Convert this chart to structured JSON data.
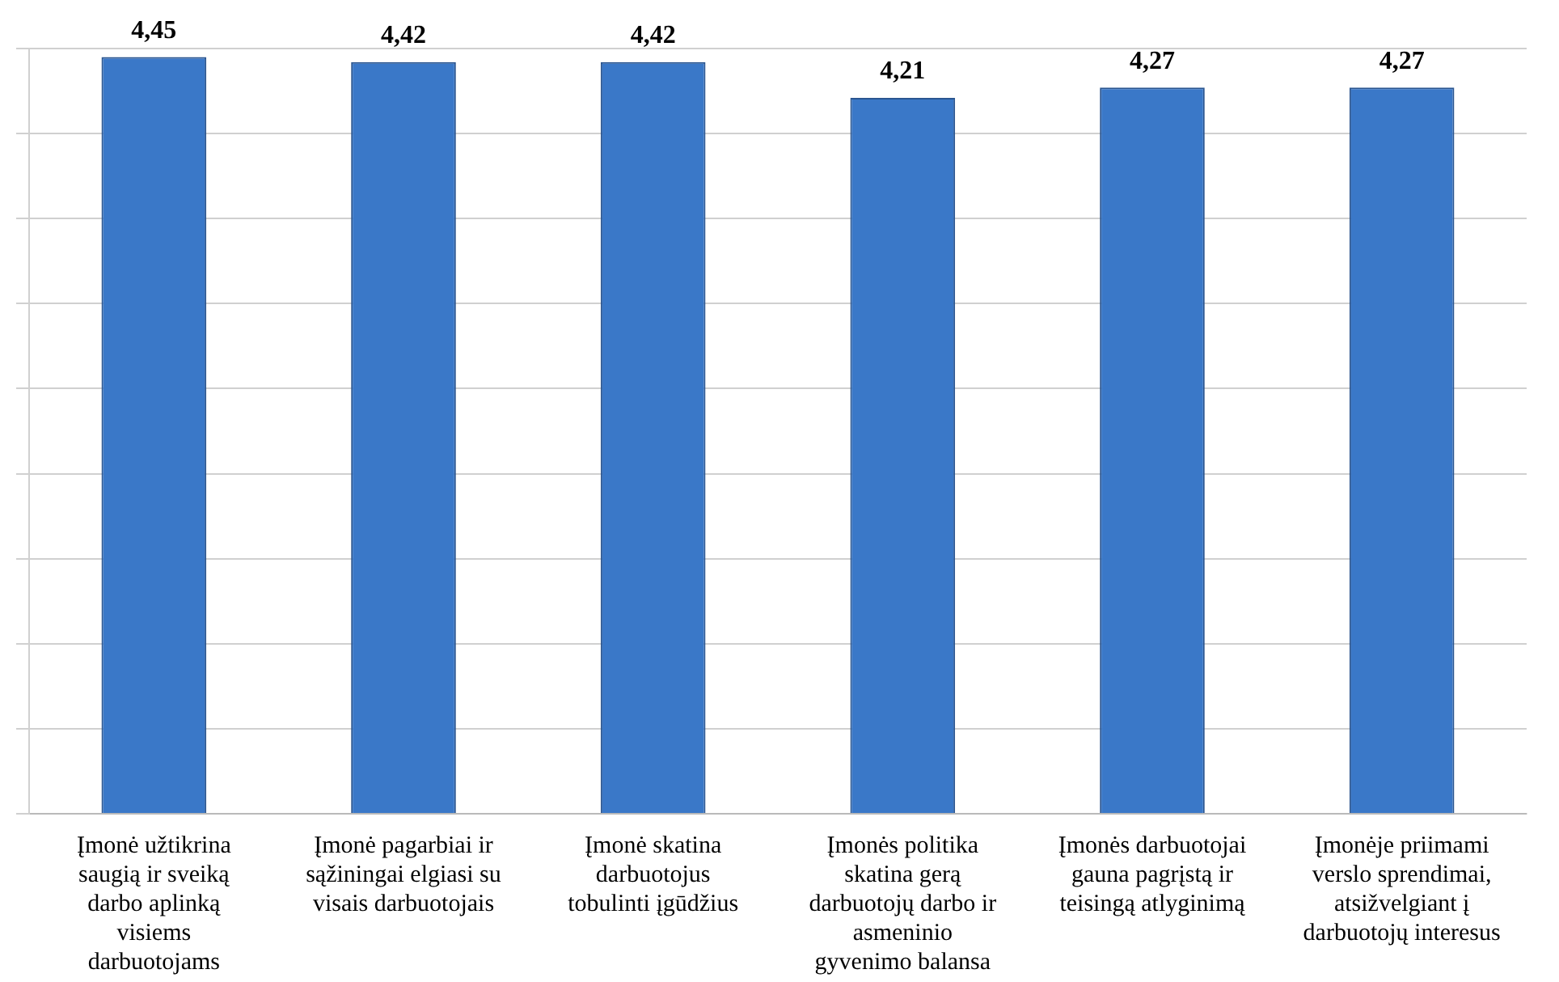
{
  "chart_data": {
    "type": "bar",
    "categories": [
      "Įmonė užtikrina saugią ir sveiką darbo aplinką visiems darbuotojams",
      "Įmonė pagarbiai ir sąžiningai elgiasi su visais darbuotojais",
      "Įmonė skatina darbuotojus tobulinti įgūdžius",
      "Įmonės politika skatina gerą darbuotojų darbo ir asmeninio gyvenimo balansa",
      "Įmonės darbuotojai gauna pagrįstą ir teisingą atlyginimą",
      "Įmonėje priimami verslo sprendimai, atsižvelgiant į darbuotojų interesus"
    ],
    "values": [
      4.45,
      4.42,
      4.42,
      4.21,
      4.27,
      4.27
    ],
    "color": "#3a78c8",
    "value_labels": [
      "4,45",
      "4,42",
      "4,42",
      "4,21",
      "4,27",
      "4,27"
    ],
    "grid": "y",
    "tick_labels": "x",
    "legend": false
  }
}
